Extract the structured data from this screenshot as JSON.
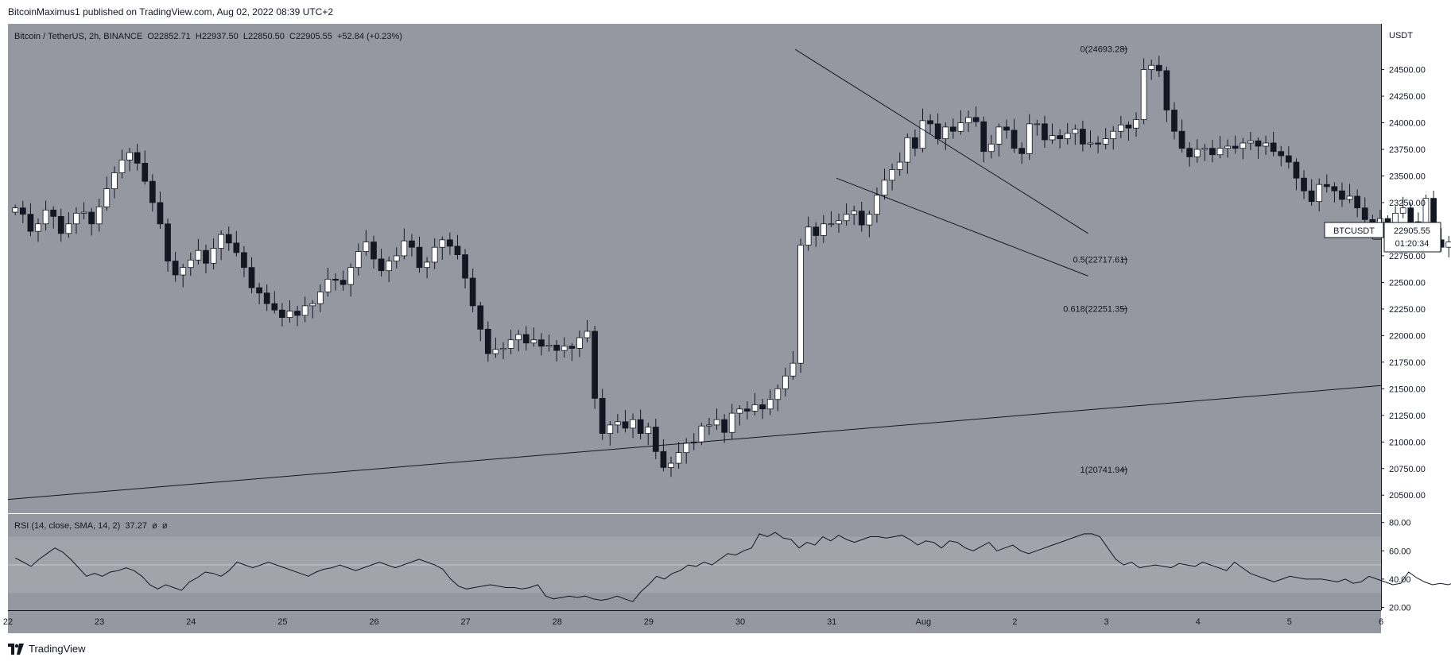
{
  "header": {
    "publisher_line": "BitcoinMaximus1 published on TradingView.com, Aug 02, 2022 08:39 UTC+2"
  },
  "legend": {
    "symbol": "Bitcoin / TetherUS, 2h, BINANCE",
    "open_label": "O",
    "open": "22852.71",
    "high_label": "H",
    "high": "22937.50",
    "low_label": "L",
    "low": "22850.50",
    "close_label": "C",
    "close": "22905.55",
    "change": "+52.84 (+0.23%)"
  },
  "rsi_legend": {
    "label": "RSI (14, close, SMA, 14, 2)",
    "value": "37.27",
    "extra1": "ø",
    "extra2": "ø"
  },
  "price_badge": {
    "symbol": "BTCUSDT",
    "price": "22905.55",
    "countdown": "01:20:34"
  },
  "footer": {
    "brand": "TradingView"
  },
  "colors": {
    "pane_bg": "#9598a1",
    "rsi_band": "#a2a4ab",
    "axis_bg": "#ffffff",
    "candle_up": "#ffffff",
    "candle_down": "#131722",
    "line": "#131722"
  },
  "chart_data": [
    {
      "type": "candlestick",
      "title": "Bitcoin / TetherUS, 2h, BINANCE",
      "y_axis_title": "USDT",
      "ylim": [
        20330,
        24930
      ],
      "y_ticks": [
        20500,
        20750,
        21000,
        21250,
        21500,
        21750,
        22000,
        22250,
        22500,
        22750,
        23000,
        23250,
        23500,
        23750,
        24000,
        24250,
        24500
      ],
      "y_tick_labels": [
        "20500.00",
        "20750.00",
        "21000.00",
        "21250.00",
        "21500.00",
        "21750.00",
        "22000.00",
        "22250.00",
        "22500.00",
        "22750.00",
        "23000.00",
        "23250.00",
        "23500.00",
        "23750.00",
        "24000.00",
        "24250.00",
        "24500.00"
      ],
      "x_tick_labels": [
        "22",
        "23",
        "24",
        "25",
        "26",
        "27",
        "28",
        "29",
        "30",
        "31",
        "Aug",
        "2",
        "3",
        "4",
        "5",
        "6"
      ],
      "x_tick_positions_days": [
        0,
        1,
        2,
        3,
        4,
        5,
        6,
        7,
        8,
        9,
        10,
        11,
        12,
        13,
        14,
        15
      ],
      "x_range_days": [
        0.0,
        15.0
      ],
      "bar_interval_days": 0.0833,
      "series_closes": [
        23200,
        23140,
        22980,
        23050,
        23180,
        23120,
        22960,
        23050,
        23150,
        23160,
        23050,
        23210,
        23380,
        23530,
        23650,
        23720,
        23620,
        23450,
        23250,
        23050,
        22700,
        22570,
        22640,
        22710,
        22800,
        22680,
        22820,
        22950,
        22870,
        22780,
        22640,
        22450,
        22400,
        22300,
        22240,
        22170,
        22230,
        22190,
        22280,
        22300,
        22410,
        22530,
        22520,
        22480,
        22640,
        22790,
        22880,
        22720,
        22610,
        22700,
        22750,
        22890,
        22830,
        22640,
        22690,
        22830,
        22900,
        22840,
        22760,
        22540,
        22280,
        22060,
        21830,
        21870,
        21880,
        21960,
        22010,
        21930,
        21960,
        21900,
        21910,
        21860,
        21900,
        21880,
        21980,
        22040,
        21410,
        21080,
        21160,
        21190,
        21130,
        21210,
        21080,
        21140,
        20910,
        20760,
        20800,
        20900,
        20990,
        21000,
        21150,
        21160,
        21210,
        21090,
        21270,
        21310,
        21290,
        21350,
        21310,
        21400,
        21500,
        21620,
        21740,
        22850,
        23020,
        22940,
        23050,
        23050,
        23080,
        23140,
        23170,
        23040,
        23140,
        23320,
        23460,
        23560,
        23630,
        23860,
        23760,
        24020,
        23990,
        23850,
        23960,
        23920,
        24000,
        24050,
        24010,
        23730,
        23800,
        23960,
        23930,
        23760,
        23710,
        23990,
        23990,
        23840,
        23880,
        23850,
        23900,
        23940,
        23800,
        23810,
        23800,
        23850,
        23920,
        23980,
        23950,
        24030,
        24500,
        24540,
        24490,
        24120,
        23920,
        23760,
        23680,
        23750,
        23760,
        23700,
        23760,
        23780,
        23760,
        23810,
        23830,
        23780,
        23810,
        23730,
        23690,
        23630,
        23480,
        23360,
        23260,
        23420,
        23400,
        23360,
        23280,
        23310,
        23200,
        23090,
        23010,
        23100,
        23050,
        23150,
        23200,
        23070,
        22980,
        23290,
        22900,
        22830,
        22880,
        22905
      ],
      "channel_upper": [
        {
          "x_day": 8.6,
          "y": 24690
        },
        {
          "x_day": 11.8,
          "y": 22960
        }
      ],
      "channel_lower": [
        {
          "x_day": 9.05,
          "y": 23480
        },
        {
          "x_day": 11.8,
          "y": 22560
        }
      ],
      "support_line": [
        {
          "x_day": 0.0,
          "y": 20460
        },
        {
          "x_day": 15.0,
          "y": 21530
        }
      ],
      "fib_levels": [
        {
          "label": "0(24693.28)",
          "value": 24693.28
        },
        {
          "label": "0.5(22717.61)",
          "value": 22717.61
        },
        {
          "label": "0.618(22251.35)",
          "value": 22251.35
        },
        {
          "label": "1(20741.94)",
          "value": 20741.94
        }
      ],
      "last_price": 22905.55
    },
    {
      "type": "line",
      "title": "RSI (14, close, SMA, 14, 2)",
      "ylim": [
        18,
        86
      ],
      "y_ticks": [
        20,
        40,
        60,
        80
      ],
      "y_tick_labels": [
        "20.00",
        "40.00",
        "60.00",
        "80.00"
      ],
      "band": [
        30,
        70
      ],
      "midline": 50,
      "series": [
        {
          "values": [
            55,
            52,
            49,
            54,
            58,
            62,
            59,
            54,
            48,
            42,
            44,
            42,
            45,
            46,
            48,
            46,
            42,
            36,
            33,
            36,
            34,
            32,
            38,
            41,
            45,
            44,
            42,
            46,
            52,
            50,
            48,
            50,
            52,
            50,
            48,
            46,
            44,
            42,
            45,
            47,
            48,
            50,
            48,
            46,
            48,
            50,
            52,
            50,
            48,
            50,
            52,
            54,
            52,
            50,
            47,
            40,
            35,
            33,
            34,
            35,
            36,
            35,
            34,
            34,
            33,
            34,
            36,
            28,
            26,
            27,
            28,
            27,
            28,
            26,
            25,
            26,
            28,
            26,
            24,
            31,
            36,
            42,
            40,
            44,
            46,
            50,
            49,
            52,
            50,
            54,
            58,
            57,
            60,
            62,
            72,
            70,
            73,
            69,
            68,
            62,
            66,
            64,
            70,
            67,
            71,
            68,
            66,
            68,
            70,
            70,
            69,
            70,
            71,
            68,
            64,
            67,
            66,
            62,
            67,
            66,
            62,
            60,
            63,
            66,
            60,
            62,
            64,
            60,
            58,
            60,
            62,
            64,
            66,
            68,
            70,
            72,
            72,
            70,
            62,
            54,
            50,
            52,
            48,
            49,
            50,
            49,
            48,
            51,
            50,
            49,
            52,
            50,
            48,
            46,
            52,
            48,
            44,
            42,
            40,
            38,
            40,
            42,
            41,
            40,
            40,
            40,
            39,
            38,
            40,
            37,
            38,
            42,
            40,
            38,
            36,
            37,
            45,
            41,
            38,
            36,
            37,
            36,
            38
          ]
        }
      ]
    }
  ]
}
